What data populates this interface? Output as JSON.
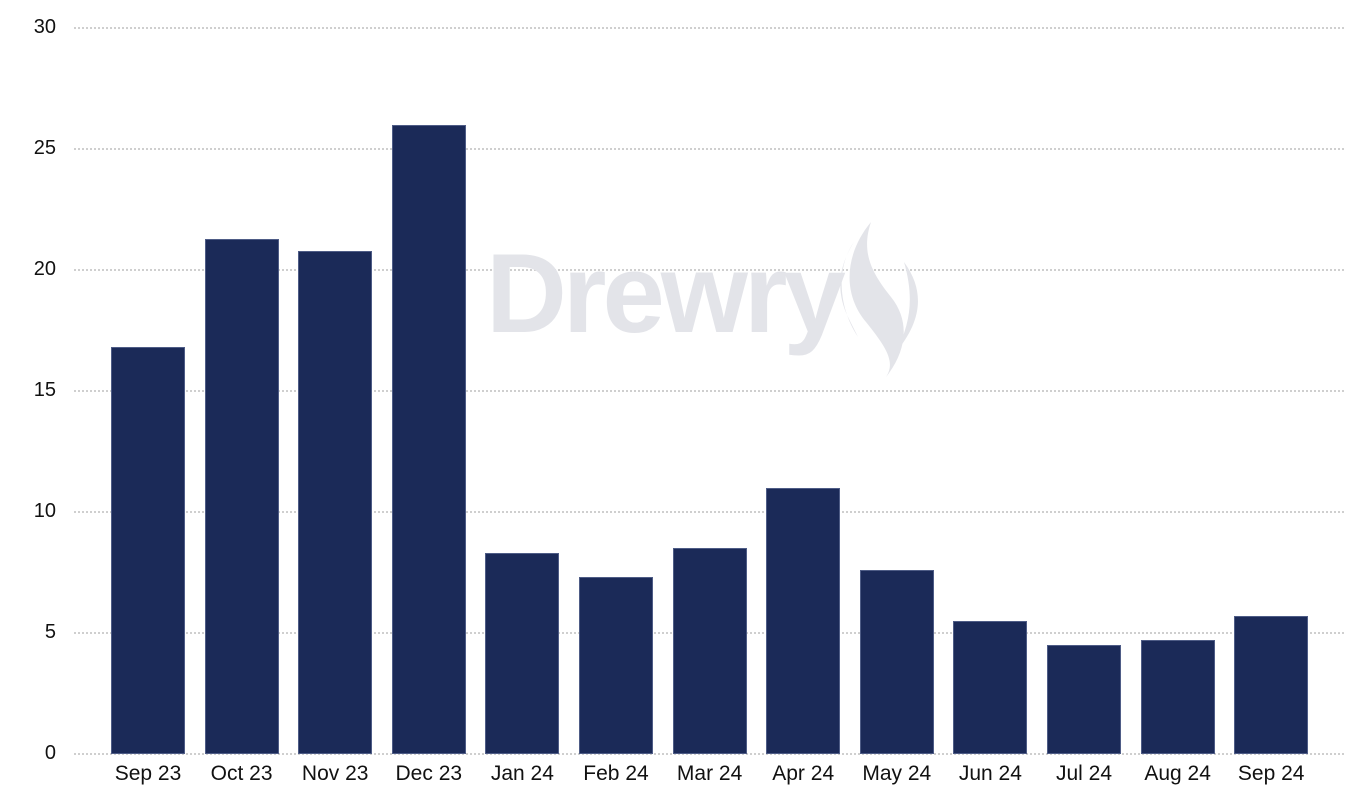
{
  "chart_data": {
    "type": "bar",
    "title": "",
    "xlabel": "",
    "ylabel": "",
    "categories": [
      "Sep 23",
      "Oct 23",
      "Nov 23",
      "Dec 23",
      "Jan 24",
      "Feb 24",
      "Mar 24",
      "Apr 24",
      "May 24",
      "Jun 24",
      "Jul 24",
      "Aug 24",
      "Sep 24"
    ],
    "values": [
      16.8,
      21.3,
      20.8,
      26.0,
      8.3,
      7.3,
      8.5,
      11.0,
      7.6,
      5.5,
      4.5,
      4.7,
      5.7
    ],
    "ylim": [
      0,
      30
    ],
    "yticks": [
      "0",
      "5",
      "10",
      "15",
      "20",
      "25",
      "30"
    ],
    "ytick_values": [
      0,
      5,
      10,
      15,
      20,
      25,
      30
    ],
    "grid": true,
    "grid_style": "dotted",
    "legend": null,
    "bar_color": "#1b2a58",
    "watermark": "Drewry"
  }
}
